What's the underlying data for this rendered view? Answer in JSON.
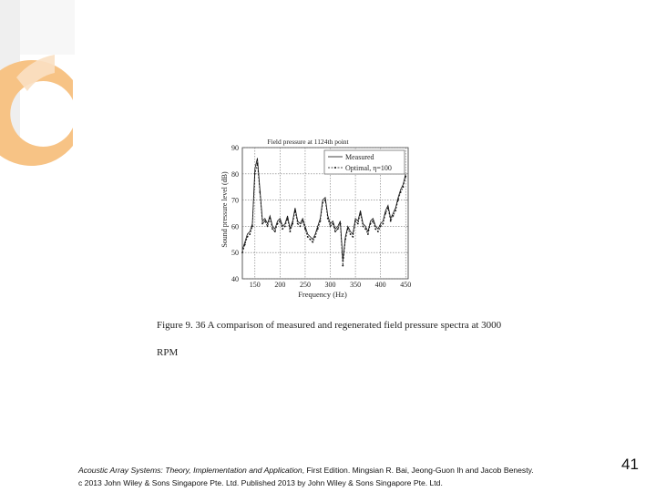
{
  "theme": {
    "accent_orange": "#f7c385",
    "accent_light": "#fae0c3",
    "accent_gray": "#d9d9d9"
  },
  "figure": {
    "caption_line1": "Figure 9. 36 A comparison of measured and regenerated field pressure spectra at 3000",
    "caption_line2": "RPM"
  },
  "chart_data": {
    "type": "line",
    "title": "Field pressure at 1124th point",
    "xlabel": "Frequency (Hz)",
    "ylabel": "Sound pressure level (dB)",
    "xlim": [
      125,
      455
    ],
    "ylim": [
      40,
      90
    ],
    "xticks": [
      "150",
      "200",
      "250",
      "300",
      "350",
      "400",
      "450"
    ],
    "yticks": [
      "40",
      "50",
      "60",
      "70",
      "80",
      "90"
    ],
    "grid": true,
    "legend_position": "top-right",
    "series": [
      {
        "name": "Measured",
        "style": "solid",
        "x": [
          125,
          130,
          135,
          140,
          145,
          150,
          155,
          160,
          165,
          170,
          175,
          180,
          185,
          190,
          195,
          200,
          205,
          210,
          215,
          220,
          225,
          230,
          235,
          240,
          245,
          250,
          255,
          260,
          265,
          270,
          275,
          280,
          285,
          290,
          295,
          300,
          305,
          310,
          315,
          320,
          325,
          330,
          335,
          340,
          345,
          350,
          355,
          360,
          365,
          370,
          375,
          380,
          385,
          390,
          395,
          400,
          405,
          410,
          415,
          420,
          425,
          430,
          435,
          440,
          445,
          450
        ],
        "values": [
          51,
          54,
          57,
          58,
          61,
          82,
          86,
          74,
          62,
          63,
          61,
          64,
          60,
          59,
          62,
          63,
          60,
          61,
          64,
          59,
          62,
          67,
          62,
          61,
          63,
          60,
          57,
          56,
          55,
          57,
          60,
          63,
          70,
          71,
          64,
          61,
          62,
          59,
          60,
          62,
          47,
          56,
          60,
          58,
          57,
          63,
          62,
          66,
          61,
          60,
          58,
          62,
          63,
          60,
          59,
          61,
          62,
          66,
          68,
          63,
          65,
          67,
          71,
          74,
          76,
          80
        ]
      },
      {
        "name": "Optimal, η=100",
        "style": "dashed",
        "x": [
          125,
          130,
          135,
          140,
          145,
          150,
          155,
          160,
          165,
          170,
          175,
          180,
          185,
          190,
          195,
          200,
          205,
          210,
          215,
          220,
          225,
          230,
          235,
          240,
          245,
          250,
          255,
          260,
          265,
          270,
          275,
          280,
          285,
          290,
          295,
          300,
          305,
          310,
          315,
          320,
          325,
          330,
          335,
          340,
          345,
          350,
          355,
          360,
          365,
          370,
          375,
          380,
          385,
          390,
          395,
          400,
          405,
          410,
          415,
          420,
          425,
          430,
          435,
          440,
          445,
          450
        ],
        "values": [
          50,
          53,
          56,
          57,
          60,
          80,
          84,
          73,
          61,
          62,
          60,
          63,
          59,
          58,
          61,
          62,
          59,
          60,
          63,
          58,
          61,
          66,
          61,
          60,
          62,
          59,
          56,
          55,
          54,
          56,
          59,
          62,
          69,
          70,
          63,
          60,
          61,
          58,
          59,
          61,
          45,
          55,
          59,
          57,
          56,
          62,
          61,
          65,
          60,
          59,
          57,
          61,
          62,
          59,
          58,
          60,
          61,
          65,
          67,
          62,
          64,
          66,
          70,
          73,
          75,
          79
        ]
      }
    ]
  },
  "footer": {
    "book_title": "Acoustic Array Systems: Theory, Implementation and Application",
    "edition_line": ", First Edition. Mingsian R. Bai, Jeong-Guon Ih and Jacob Benesty.",
    "copyright_line": "c 2013 John Wiley & Sons Singapore Pte. Ltd. Published 2013 by John Wiley & Sons Singapore Pte. Ltd."
  },
  "page_number": "41"
}
